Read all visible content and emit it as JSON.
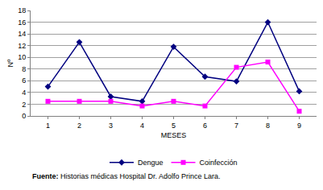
{
  "chart_data": {
    "type": "line",
    "x_label": "MESES",
    "y_label": "Nº",
    "categories": [
      "1",
      "2",
      "3",
      "4",
      "5",
      "6",
      "7",
      "8",
      "9"
    ],
    "series": [
      {
        "name": "Dengue",
        "color": "#000080",
        "marker": "diamond",
        "values": [
          5,
          12.6,
          3.3,
          2.5,
          11.8,
          6.7,
          5.9,
          16,
          4.2
        ]
      },
      {
        "name": "Coinfección",
        "color": "#ff00ff",
        "marker": "square",
        "values": [
          2.5,
          2.5,
          2.5,
          1.7,
          2.5,
          1.7,
          8.3,
          9.2,
          0.8
        ]
      }
    ],
    "ylim": [
      0,
      18
    ],
    "yticks": [
      0,
      2,
      4,
      6,
      8,
      10,
      12,
      14,
      16,
      18
    ],
    "grid": true,
    "legend": "bottom",
    "annotations": [
      "Fuente: Historias médicas Hospital Dr. Adolfo Prince Lara."
    ]
  }
}
